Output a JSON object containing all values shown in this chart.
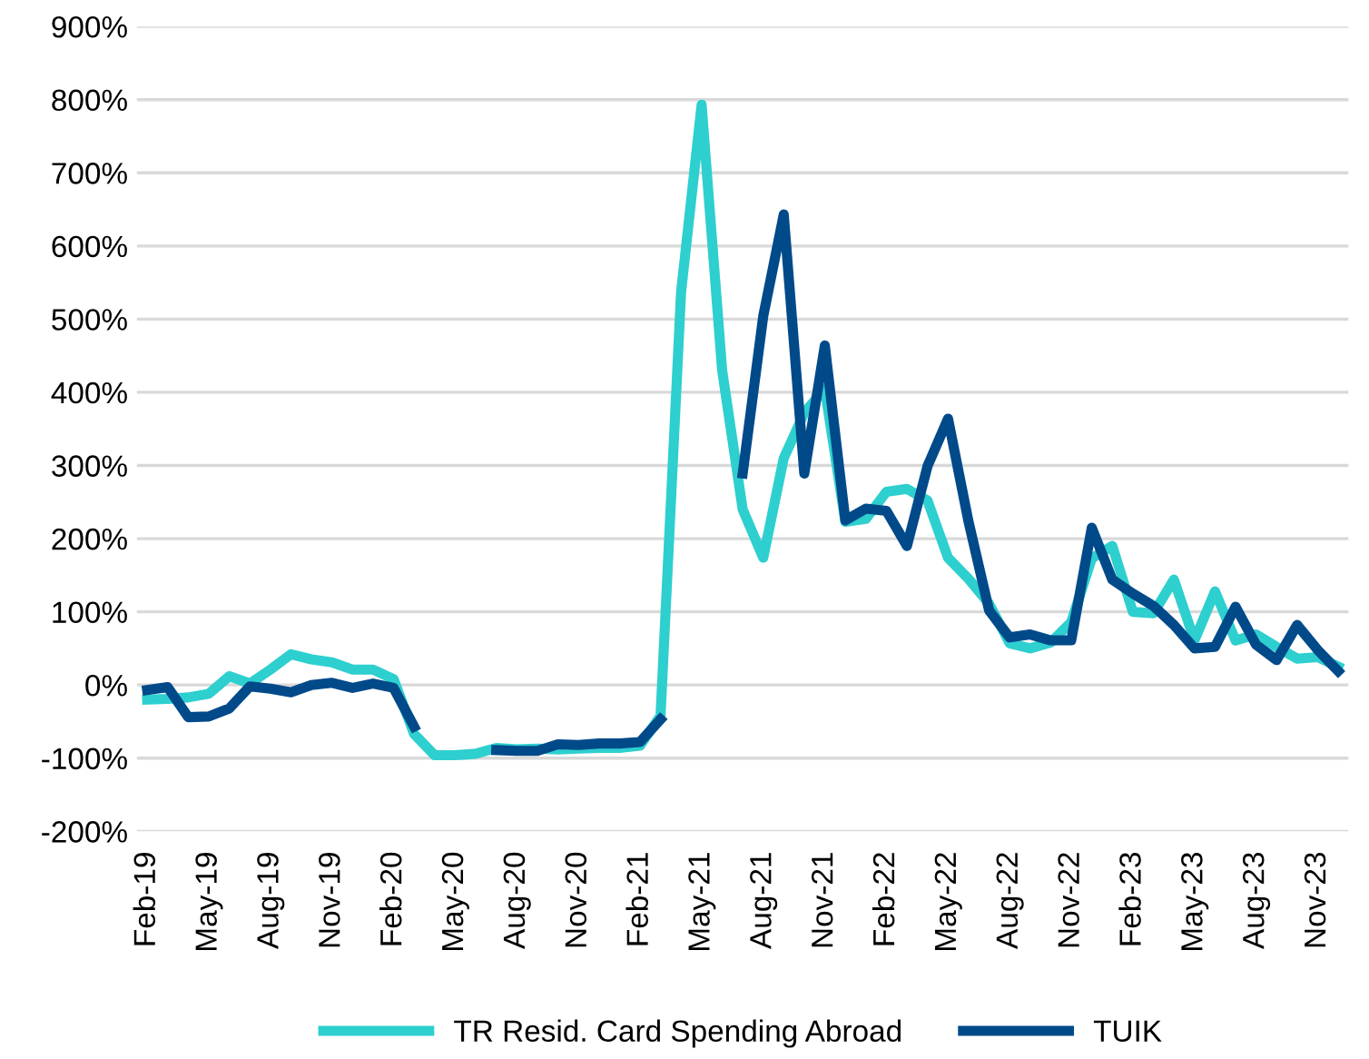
{
  "chart_data": {
    "type": "line",
    "categories": [
      "Feb-19",
      null,
      null,
      "May-19",
      null,
      null,
      "Aug-19",
      null,
      null,
      "Nov-19",
      null,
      null,
      "Feb-20",
      null,
      null,
      "May-20",
      null,
      null,
      "Aug-20",
      null,
      null,
      "Nov-20",
      null,
      null,
      "Feb-21",
      null,
      null,
      "May-21",
      null,
      null,
      "Aug-21",
      null,
      null,
      "Nov-21",
      null,
      null,
      "Feb-22",
      null,
      null,
      "May-22",
      null,
      null,
      "Aug-22",
      null,
      null,
      "Nov-22",
      null,
      null,
      "Feb-23",
      null,
      null,
      "May-23",
      null,
      null,
      "Aug-23",
      null,
      null,
      "Nov-23",
      null
    ],
    "series": [
      {
        "name": "TR Resid. Card Spending Abroad",
        "color": "#2ecfcf",
        "values": [
          -20,
          -19,
          -17,
          -12,
          12,
          2,
          21,
          42,
          35,
          31,
          21,
          21,
          8,
          -67,
          -96,
          -96,
          -94,
          -86,
          -88,
          -87,
          -88,
          -87,
          -86,
          -86,
          -83,
          -42,
          537,
          793,
          430,
          240,
          174,
          310,
          372,
          405,
          223,
          227,
          264,
          268,
          252,
          174,
          145,
          111,
          57,
          50,
          58,
          86,
          173,
          190,
          100,
          98,
          144,
          61,
          128,
          61,
          69,
          52,
          36,
          38,
          25
        ]
      },
      {
        "name": "TUIK",
        "color": "#004a8a",
        "values": [
          -7,
          -3,
          -44,
          -43,
          -32,
          -2,
          -5,
          -10,
          0,
          3,
          -4,
          2,
          -4,
          -57,
          null,
          null,
          null,
          -89,
          -90,
          -90,
          -81,
          -82,
          -80,
          -80,
          -78,
          -47,
          null,
          null,
          null,
          289,
          504,
          643,
          289,
          464,
          225,
          241,
          238,
          190,
          299,
          364,
          223,
          102,
          65,
          69,
          61,
          61,
          215,
          144,
          125,
          108,
          82,
          50,
          52,
          107,
          55,
          34,
          82,
          48,
          19
        ]
      }
    ],
    "ylim": [
      -200,
      900
    ],
    "yticks": [
      {
        "value": -200,
        "label": "-200%"
      },
      {
        "value": -100,
        "label": "-100%"
      },
      {
        "value": 0,
        "label": "0%"
      },
      {
        "value": 100,
        "label": "100%"
      },
      {
        "value": 200,
        "label": "200%"
      },
      {
        "value": 300,
        "label": "300%"
      },
      {
        "value": 400,
        "label": "400%"
      },
      {
        "value": 500,
        "label": "500%"
      },
      {
        "value": 600,
        "label": "600%"
      },
      {
        "value": 700,
        "label": "700%"
      },
      {
        "value": 800,
        "label": "800%"
      },
      {
        "value": 900,
        "label": "900%"
      }
    ],
    "grid": "y",
    "legend": "bottom",
    "marker": "none",
    "line_style": "solid"
  }
}
